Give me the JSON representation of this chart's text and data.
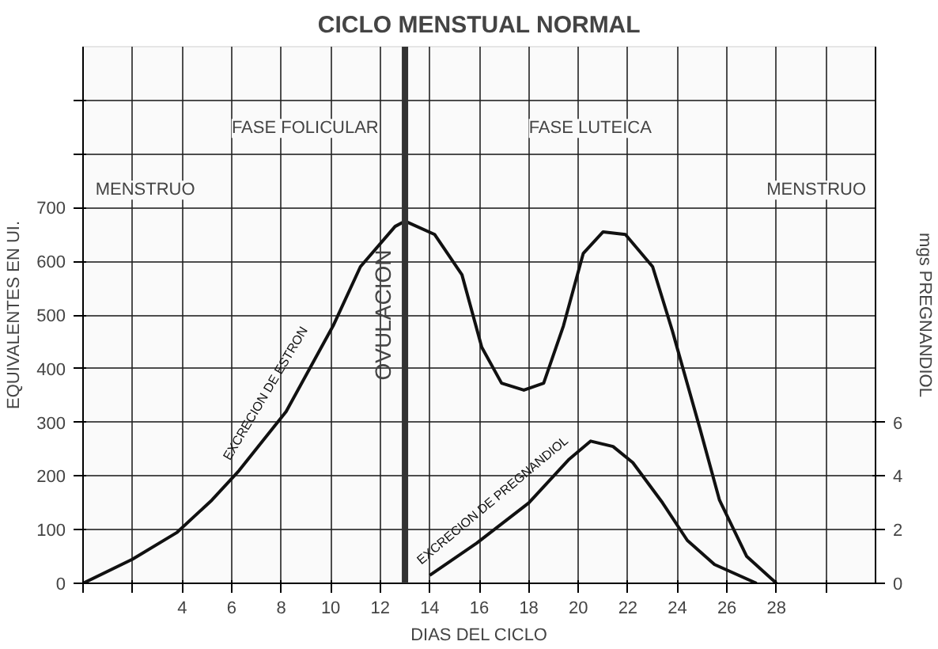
{
  "chart_data": {
    "type": "line",
    "title": "CICLO MENSTUAL NORMAL",
    "xlabel": "DIAS DEL CICLO",
    "ylabel": "EQUIVALENTES EN UI.",
    "y2label": "mgs PREGNANDIOL",
    "xlim": [
      0,
      32
    ],
    "ylim": [
      0,
      1000
    ],
    "y2lim": [
      0,
      20
    ],
    "xticks": [
      {
        "value": 0,
        "label": null
      },
      {
        "value": 2,
        "label": null
      },
      4,
      6,
      8,
      10,
      12,
      14,
      16,
      18,
      20,
      22,
      24,
      26,
      28,
      {
        "value": 30,
        "label": null
      }
    ],
    "yticks": [
      0,
      100,
      200,
      300,
      400,
      500,
      600,
      700,
      {
        "value": 800,
        "label": null
      },
      {
        "value": 900,
        "label": null
      }
    ],
    "y2ticks": [
      0,
      2,
      4,
      6
    ],
    "grid": true,
    "marker": "none",
    "line_style": "solid",
    "series": [
      {
        "name": "EXCRECION DE ESTRON",
        "color": "#111111",
        "x": [
          0,
          2,
          3.8,
          5.2,
          6.3,
          8.2,
          10.1,
          11.2,
          12.6,
          13,
          14.2,
          15.3,
          16.1,
          16.9,
          17.8,
          18.6,
          19.4,
          20.2,
          21,
          21.9,
          23,
          23.8,
          24.9,
          25.7,
          26.8,
          28
        ],
        "values": [
          0,
          45,
          95,
          155,
          210,
          320,
          480,
          590,
          665,
          675,
          650,
          575,
          440,
          373,
          360,
          373,
          480,
          615,
          655,
          650,
          590,
          470,
          290,
          155,
          50,
          0
        ]
      },
      {
        "name": "EXCRECION DE PREGNANDIOL",
        "color": "#111111",
        "axis": "y2",
        "x": [
          14,
          15.9,
          18,
          19.6,
          20.5,
          21.4,
          22.2,
          23.4,
          24.4,
          25.5,
          27.2
        ],
        "values": [
          0.3,
          1.5,
          3.0,
          4.6,
          5.3,
          5.1,
          4.5,
          3.0,
          1.6,
          0.7,
          0
        ]
      }
    ],
    "ref_lines": [
      {
        "axis": "x",
        "value": 13,
        "label": "OVULACION",
        "color": "#333333"
      }
    ],
    "annotations": [
      "FASE FOLICULAR",
      "FASE LUTEICA",
      "MENSTRUO",
      "MENSTRUO"
    ]
  }
}
